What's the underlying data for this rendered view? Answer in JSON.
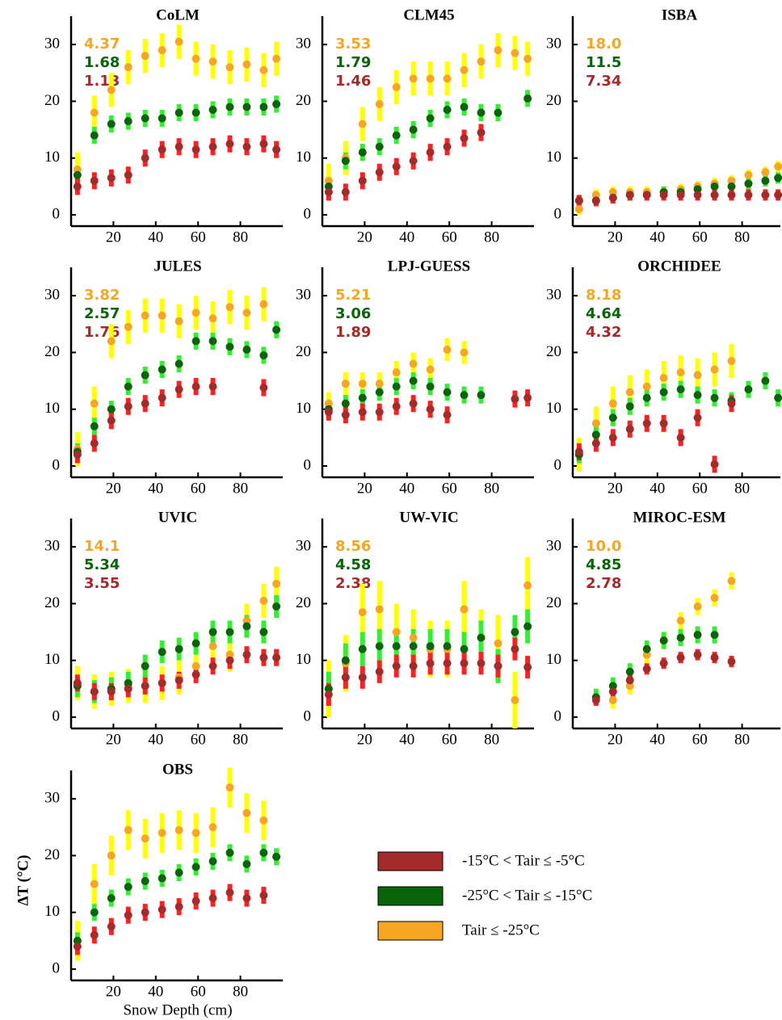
{
  "legend": [
    {
      "name": "-15°C < Tair ≤ -5°C",
      "color": "#a52a2a",
      "bar_color": "#ff2020"
    },
    {
      "name": "-25°C < Tair ≤ -15°C",
      "color": "#0a640a",
      "bar_color": "#33ee33"
    },
    {
      "name": "Tair ≤ -25°C",
      "color": "#f5a623",
      "bar_color": "#ffff00"
    }
  ],
  "chart_data": [
    {
      "type": "scatter",
      "title": "CoLM",
      "annotations": [
        "4.37",
        "1.68",
        "1.13"
      ],
      "xlim": [
        0,
        100
      ],
      "ylim": [
        0,
        35
      ],
      "xticks": [
        20,
        40,
        60,
        80
      ],
      "yticks": [
        0,
        10,
        20,
        30
      ],
      "x": [
        3,
        11,
        19,
        27,
        35,
        43,
        51,
        59,
        67,
        75,
        83,
        91,
        97
      ],
      "series": [
        {
          "values": [
            5,
            6,
            6.5,
            7,
            10,
            11.5,
            12,
            11.5,
            12,
            12.5,
            12,
            12.5,
            11.5
          ],
          "error": 1.5
        },
        {
          "values": [
            7,
            14,
            16,
            16.5,
            17,
            17,
            18,
            18,
            18.5,
            19,
            19,
            19,
            19.5
          ],
          "error": 1.5
        },
        {
          "values": [
            8,
            18,
            22,
            26,
            28,
            29,
            30.5,
            27.5,
            27,
            26,
            26.5,
            25.5,
            27.5
          ],
          "error": 3
        }
      ]
    },
    {
      "type": "scatter",
      "title": "CLM45",
      "annotations": [
        "3.53",
        "1.79",
        "1.46"
      ],
      "xlim": [
        0,
        100
      ],
      "ylim": [
        0,
        35
      ],
      "xticks": [
        20,
        40,
        60,
        80
      ],
      "yticks": [
        0,
        10,
        20,
        30
      ],
      "x": [
        3,
        11,
        19,
        27,
        35,
        43,
        51,
        59,
        67,
        75,
        83,
        91,
        97
      ],
      "series": [
        {
          "values": [
            4,
            4,
            6,
            7.5,
            8.5,
            9.5,
            11,
            12,
            13.5,
            14.5,
            null,
            null,
            null
          ],
          "error": 1.5
        },
        {
          "values": [
            5,
            9.5,
            11,
            12,
            14,
            15,
            17,
            18.5,
            19,
            18,
            18,
            null,
            20.5
          ],
          "error": 1.5
        },
        {
          "values": [
            6,
            10,
            16,
            19.5,
            22.5,
            24,
            24,
            24,
            25.5,
            27,
            29,
            28.5,
            27.5
          ],
          "error": 3
        }
      ]
    },
    {
      "type": "scatter",
      "title": "ISBA",
      "annotations": [
        "18.0",
        "11.5",
        "7.34"
      ],
      "xlim": [
        0,
        100
      ],
      "ylim": [
        0,
        35
      ],
      "xticks": [
        20,
        40,
        60,
        80
      ],
      "yticks": [
        0,
        10,
        20,
        30
      ],
      "x": [
        3,
        11,
        19,
        27,
        35,
        43,
        51,
        59,
        67,
        75,
        83,
        91,
        97
      ],
      "series": [
        {
          "values": [
            2.5,
            2.5,
            3,
            3.5,
            3.5,
            3.5,
            3.5,
            3.5,
            3.5,
            3.5,
            3.5,
            3.5,
            3.5
          ],
          "error": 1
        },
        {
          "values": [
            2.5,
            2.5,
            3,
            3.5,
            3.5,
            4,
            4,
            4.5,
            5,
            5,
            5.5,
            6,
            6.5
          ],
          "error": 1
        },
        {
          "values": [
            1,
            3.5,
            4,
            4,
            4,
            4,
            4.5,
            5,
            5.5,
            6,
            7,
            7.5,
            8.5
          ],
          "error": 1
        }
      ]
    },
    {
      "type": "scatter",
      "title": "JULES",
      "annotations": [
        "3.82",
        "2.57",
        "1.76"
      ],
      "xlim": [
        0,
        100
      ],
      "ylim": [
        0,
        35
      ],
      "xticks": [
        20,
        40,
        60,
        80
      ],
      "yticks": [
        0,
        10,
        20,
        30
      ],
      "x": [
        3,
        11,
        19,
        27,
        35,
        43,
        51,
        59,
        67,
        75,
        83,
        91,
        97
      ],
      "series": [
        {
          "values": [
            2,
            4,
            8,
            10.5,
            11,
            12,
            13.5,
            14,
            14,
            null,
            null,
            13.8,
            null
          ],
          "error": 1.5
        },
        {
          "values": [
            2.5,
            7,
            10,
            14,
            16,
            17,
            18,
            22,
            22,
            21,
            20.5,
            19.5,
            24
          ],
          "error": 1.5
        },
        {
          "values": [
            3,
            11,
            22,
            24.5,
            26.5,
            26.5,
            25.5,
            27,
            26,
            28,
            27,
            28.5,
            null
          ],
          "error": 3
        }
      ]
    },
    {
      "type": "scatter",
      "title": "LPJ-GUESS",
      "annotations": [
        "5.21",
        "3.06",
        "1.89"
      ],
      "xlim": [
        0,
        100
      ],
      "ylim": [
        0,
        35
      ],
      "xticks": [
        20,
        40,
        60,
        80
      ],
      "yticks": [
        0,
        10,
        20,
        30
      ],
      "x": [
        3,
        11,
        19,
        27,
        35,
        43,
        51,
        59,
        67,
        75,
        83,
        91,
        97
      ],
      "series": [
        {
          "values": [
            9.5,
            9,
            9.5,
            9.5,
            10.5,
            11,
            10,
            9,
            null,
            null,
            null,
            11.8,
            12
          ],
          "error": 1.5
        },
        {
          "values": [
            10,
            11,
            12,
            13,
            14,
            15,
            14,
            13,
            12.5,
            12.5,
            null,
            null,
            null
          ],
          "error": 1.5
        },
        {
          "values": [
            11,
            14.5,
            14.5,
            14.5,
            16.5,
            18,
            17,
            20.5,
            20,
            null,
            null,
            null,
            null
          ],
          "error": 2
        }
      ]
    },
    {
      "type": "scatter",
      "title": "ORCHIDEE",
      "annotations": [
        "8.18",
        "4.64",
        "4.32"
      ],
      "xlim": [
        0,
        100
      ],
      "ylim": [
        0,
        35
      ],
      "xticks": [
        20,
        40,
        60,
        80
      ],
      "yticks": [
        0,
        10,
        20,
        30
      ],
      "x": [
        3,
        11,
        19,
        27,
        35,
        43,
        51,
        59,
        67,
        75,
        83,
        91,
        97
      ],
      "series": [
        {
          "values": [
            2.5,
            4,
            5,
            6.5,
            7.5,
            7.5,
            5,
            8.5,
            0.3,
            11,
            null,
            null,
            null
          ],
          "error": 1.5
        },
        {
          "values": [
            2,
            5.5,
            8.5,
            10.5,
            12,
            13,
            13.5,
            12.5,
            12,
            11.5,
            13.5,
            15,
            12
          ],
          "error": 1.5
        },
        {
          "values": [
            2,
            7.5,
            11,
            13,
            14,
            15.5,
            16.5,
            16,
            17,
            18.5,
            null,
            null,
            null
          ],
          "error": 3
        }
      ]
    },
    {
      "type": "scatter",
      "title": "UVIC",
      "annotations": [
        "14.1",
        "5.34",
        "3.55"
      ],
      "xlim": [
        0,
        100
      ],
      "ylim": [
        0,
        35
      ],
      "xticks": [
        20,
        40,
        60,
        80
      ],
      "yticks": [
        0,
        10,
        20,
        30
      ],
      "x": [
        3,
        11,
        19,
        27,
        35,
        43,
        51,
        59,
        67,
        75,
        83,
        91,
        97
      ],
      "series": [
        {
          "values": [
            6,
            4.5,
            4.5,
            5,
            5.5,
            6,
            6.5,
            7.5,
            9,
            10,
            11,
            10.5,
            10.5
          ],
          "error": 1.5
        },
        {
          "values": [
            5.5,
            4.5,
            5,
            6,
            9,
            11.5,
            12,
            13,
            15,
            15,
            16,
            15,
            19.5
          ],
          "error": 2
        },
        {
          "values": [
            6,
            4.5,
            5,
            5.5,
            5.5,
            6,
            7,
            9,
            12.5,
            11,
            17,
            20.5,
            23.5
          ],
          "error": 3
        }
      ]
    },
    {
      "type": "scatter",
      "title": "UW-VIC",
      "annotations": [
        "8.56",
        "4.58",
        "2.38"
      ],
      "xlim": [
        0,
        100
      ],
      "ylim": [
        0,
        35
      ],
      "xticks": [
        20,
        40,
        60,
        80
      ],
      "yticks": [
        0,
        10,
        20,
        30
      ],
      "x": [
        3,
        11,
        19,
        27,
        35,
        43,
        51,
        59,
        67,
        75,
        83,
        91,
        97
      ],
      "series": [
        {
          "values": [
            4,
            7,
            7,
            8,
            9,
            9,
            9.5,
            9.5,
            9.5,
            9.5,
            9,
            12,
            8.8
          ],
          "error": 2
        },
        {
          "values": [
            5,
            10,
            12,
            12.5,
            12.5,
            12.5,
            12.5,
            12.5,
            12,
            14,
            9,
            15,
            16
          ],
          "error": 3
        },
        {
          "values": [
            5,
            9.5,
            18.5,
            19,
            15,
            14,
            12,
            12,
            19,
            14,
            13,
            3,
            23.2
          ],
          "error": 5
        }
      ]
    },
    {
      "type": "scatter",
      "title": "MIROC-ESM",
      "annotations": [
        "10.0",
        "4.85",
        "2.78"
      ],
      "xlim": [
        0,
        100
      ],
      "ylim": [
        0,
        35
      ],
      "xticks": [
        20,
        40,
        60,
        80
      ],
      "yticks": [
        0,
        10,
        20,
        30
      ],
      "x": [
        3,
        11,
        19,
        27,
        35,
        43,
        51,
        59,
        67,
        75,
        83,
        91,
        97
      ],
      "series": [
        {
          "values": [
            null,
            3,
            4.5,
            6.5,
            8.5,
            9.5,
            10.5,
            11,
            10.5,
            9.8,
            null,
            null,
            null
          ],
          "error": 1
        },
        {
          "values": [
            null,
            3.5,
            5.5,
            8,
            12,
            13.5,
            14,
            14.5,
            14.5,
            null,
            null,
            null,
            null
          ],
          "error": 1.5
        },
        {
          "values": [
            null,
            null,
            3,
            5.5,
            11,
            13.5,
            17,
            19.5,
            21,
            24,
            null,
            null,
            null
          ],
          "error": 1.5
        }
      ]
    },
    {
      "type": "scatter",
      "title": "OBS",
      "xlabel": "Snow Depth (cm)",
      "ylabel": "ΔT (°C)",
      "xlim": [
        0,
        100
      ],
      "ylim": [
        0,
        35
      ],
      "xticks": [
        20,
        40,
        60,
        80
      ],
      "yticks": [
        0,
        10,
        20,
        30
      ],
      "x": [
        3,
        11,
        19,
        27,
        35,
        43,
        51,
        59,
        67,
        75,
        83,
        91,
        97
      ],
      "series": [
        {
          "values": [
            4,
            6,
            7.5,
            9.5,
            10,
            10.5,
            11,
            12,
            12.5,
            13.5,
            12.5,
            13,
            null
          ],
          "error": 1.5
        },
        {
          "values": [
            5,
            10,
            12.5,
            14.5,
            15.5,
            16,
            17,
            18,
            19,
            20.5,
            18.5,
            20.5,
            19.8
          ],
          "error": 1.5
        },
        {
          "values": [
            5,
            15,
            20,
            24.5,
            23,
            24,
            24.5,
            24,
            25,
            32,
            27.5,
            26.2,
            null
          ],
          "error": 3.5
        }
      ]
    }
  ]
}
